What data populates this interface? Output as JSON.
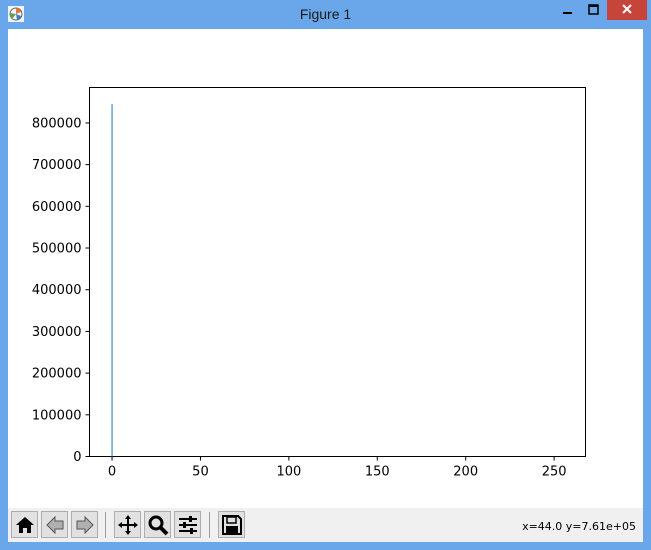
{
  "window": {
    "title": "Figure 1"
  },
  "toolbar": {
    "buttons": [
      {
        "name": "home",
        "icon": "home-icon"
      },
      {
        "name": "back",
        "icon": "back-arrow-icon"
      },
      {
        "name": "forward",
        "icon": "forward-arrow-icon"
      },
      {
        "name": "pan",
        "icon": "move-arrows-icon"
      },
      {
        "name": "zoom",
        "icon": "magnifier-icon"
      },
      {
        "name": "configure-subplots",
        "icon": "sliders-icon"
      },
      {
        "name": "save",
        "icon": "floppy-disk-icon"
      }
    ],
    "coords": "x=44.0 y=7.61e+05"
  },
  "chart_data": {
    "type": "bar",
    "title": "",
    "xlabel": "",
    "ylabel": "",
    "xlim": [
      -12.75,
      267.75
    ],
    "ylim": [
      0,
      885000
    ],
    "x_ticks": [
      0,
      50,
      100,
      150,
      200,
      250
    ],
    "y_ticks": [
      0,
      100000,
      200000,
      300000,
      400000,
      500000,
      600000,
      700000,
      800000
    ],
    "grid": false,
    "series_color": "#1f77b4",
    "bars": [
      {
        "x": 0,
        "value": 845000
      }
    ]
  }
}
